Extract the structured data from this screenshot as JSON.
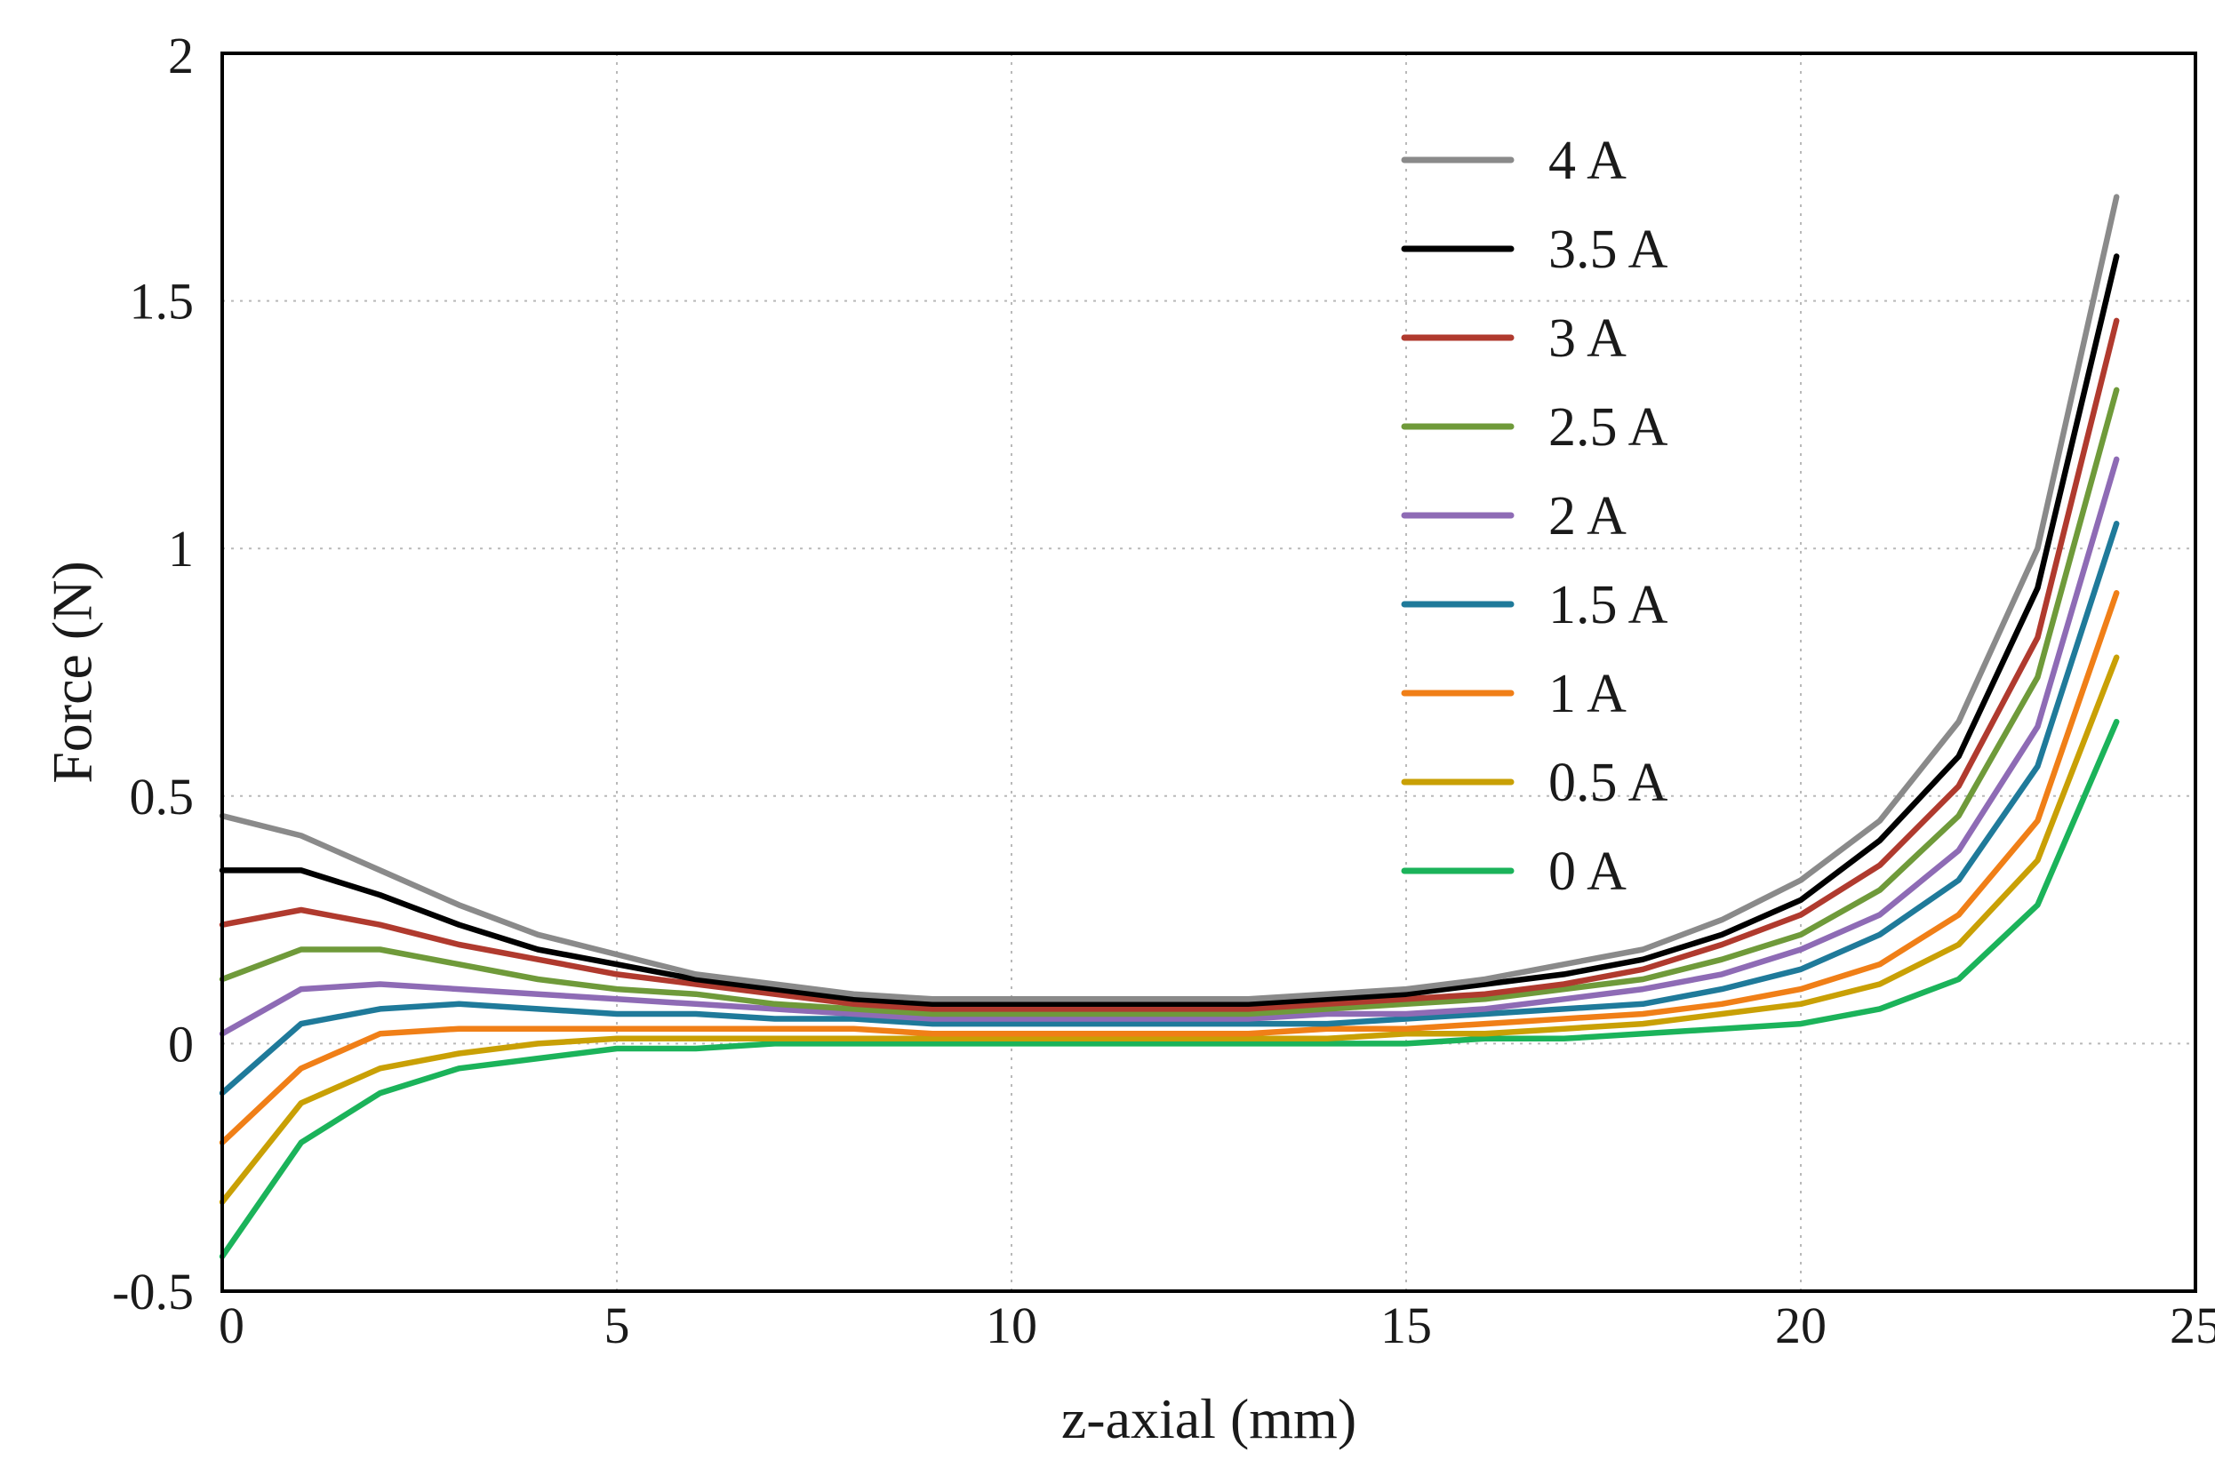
{
  "chart_data": {
    "type": "line",
    "title": "",
    "xlabel": "z-axial (mm)",
    "ylabel": "Force (N)",
    "xlim": [
      0,
      25
    ],
    "ylim": [
      -0.5,
      2
    ],
    "x_ticks": [
      "0",
      "5",
      "10",
      "15",
      "20",
      "25"
    ],
    "y_ticks": [
      "-0.5",
      "0",
      "0.5",
      "1",
      "1.5",
      "2"
    ],
    "grid": true,
    "legend_position": "top-right",
    "x": [
      0,
      1,
      2,
      3,
      4,
      5,
      6,
      7,
      8,
      9,
      10,
      11,
      12,
      13,
      14,
      15,
      16,
      17,
      18,
      19,
      20,
      21,
      22,
      23,
      24
    ],
    "series": [
      {
        "name": "4 A",
        "color": "#8a8a8a",
        "values": [
          0.46,
          0.42,
          0.35,
          0.28,
          0.22,
          0.18,
          0.14,
          0.12,
          0.1,
          0.09,
          0.09,
          0.09,
          0.09,
          0.09,
          0.1,
          0.11,
          0.13,
          0.16,
          0.19,
          0.25,
          0.33,
          0.45,
          0.65,
          1.0,
          1.71
        ]
      },
      {
        "name": "3.5 A",
        "color": "#000000",
        "values": [
          0.35,
          0.35,
          0.3,
          0.24,
          0.19,
          0.16,
          0.13,
          0.11,
          0.09,
          0.08,
          0.08,
          0.08,
          0.08,
          0.08,
          0.09,
          0.1,
          0.12,
          0.14,
          0.17,
          0.22,
          0.29,
          0.41,
          0.58,
          0.92,
          1.59
        ]
      },
      {
        "name": "3 A",
        "color": "#b03a2e",
        "values": [
          0.24,
          0.27,
          0.24,
          0.2,
          0.17,
          0.14,
          0.12,
          0.1,
          0.08,
          0.07,
          0.07,
          0.07,
          0.07,
          0.07,
          0.08,
          0.09,
          0.1,
          0.12,
          0.15,
          0.2,
          0.26,
          0.36,
          0.52,
          0.82,
          1.46
        ]
      },
      {
        "name": "2.5 A",
        "color": "#6f9a3a",
        "values": [
          0.13,
          0.19,
          0.19,
          0.16,
          0.13,
          0.11,
          0.1,
          0.08,
          0.07,
          0.06,
          0.06,
          0.06,
          0.06,
          0.06,
          0.07,
          0.08,
          0.09,
          0.11,
          0.13,
          0.17,
          0.22,
          0.31,
          0.46,
          0.74,
          1.32
        ]
      },
      {
        "name": "2 A",
        "color": "#8e6bb5",
        "values": [
          0.02,
          0.11,
          0.12,
          0.11,
          0.1,
          0.09,
          0.08,
          0.07,
          0.06,
          0.05,
          0.05,
          0.05,
          0.05,
          0.05,
          0.06,
          0.06,
          0.07,
          0.09,
          0.11,
          0.14,
          0.19,
          0.26,
          0.39,
          0.64,
          1.18
        ]
      },
      {
        "name": "1.5 A",
        "color": "#1f7a9a",
        "values": [
          -0.1,
          0.04,
          0.07,
          0.08,
          0.07,
          0.06,
          0.06,
          0.05,
          0.05,
          0.04,
          0.04,
          0.04,
          0.04,
          0.04,
          0.04,
          0.05,
          0.06,
          0.07,
          0.08,
          0.11,
          0.15,
          0.22,
          0.33,
          0.56,
          1.05
        ]
      },
      {
        "name": "1 A",
        "color": "#f07f17",
        "values": [
          -0.2,
          -0.05,
          0.02,
          0.03,
          0.03,
          0.03,
          0.03,
          0.03,
          0.03,
          0.02,
          0.02,
          0.02,
          0.02,
          0.02,
          0.03,
          0.03,
          0.04,
          0.05,
          0.06,
          0.08,
          0.11,
          0.16,
          0.26,
          0.45,
          0.91
        ]
      },
      {
        "name": "0.5 A",
        "color": "#c9a005",
        "values": [
          -0.32,
          -0.12,
          -0.05,
          -0.02,
          0.0,
          0.01,
          0.01,
          0.01,
          0.01,
          0.01,
          0.01,
          0.01,
          0.01,
          0.01,
          0.01,
          0.02,
          0.02,
          0.03,
          0.04,
          0.06,
          0.08,
          0.12,
          0.2,
          0.37,
          0.78
        ]
      },
      {
        "name": "0 A",
        "color": "#1bb35a",
        "values": [
          -0.43,
          -0.2,
          -0.1,
          -0.05,
          -0.03,
          -0.01,
          -0.01,
          0.0,
          0.0,
          0.0,
          0.0,
          0.0,
          0.0,
          0.0,
          0.0,
          0.0,
          0.01,
          0.01,
          0.02,
          0.03,
          0.04,
          0.07,
          0.13,
          0.28,
          0.65
        ]
      }
    ]
  }
}
